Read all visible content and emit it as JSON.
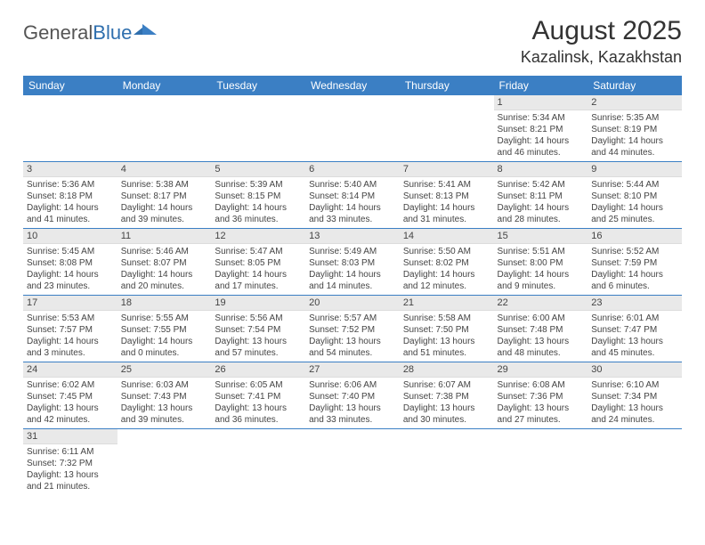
{
  "logo": {
    "text1": "General",
    "text2": "Blue"
  },
  "header": {
    "month_title": "August 2025",
    "location": "Kazalinsk, Kazakhstan"
  },
  "colors": {
    "header_bg": "#3b7fc4",
    "header_fg": "#ffffff",
    "daynum_bg": "#e9e9e9",
    "row_border": "#3b7fc4"
  },
  "weekdays": [
    "Sunday",
    "Monday",
    "Tuesday",
    "Wednesday",
    "Thursday",
    "Friday",
    "Saturday"
  ],
  "weeks": [
    [
      null,
      null,
      null,
      null,
      null,
      {
        "n": "1",
        "sr": "5:34 AM",
        "ss": "8:21 PM",
        "dl": "14 hours and 46 minutes."
      },
      {
        "n": "2",
        "sr": "5:35 AM",
        "ss": "8:19 PM",
        "dl": "14 hours and 44 minutes."
      }
    ],
    [
      {
        "n": "3",
        "sr": "5:36 AM",
        "ss": "8:18 PM",
        "dl": "14 hours and 41 minutes."
      },
      {
        "n": "4",
        "sr": "5:38 AM",
        "ss": "8:17 PM",
        "dl": "14 hours and 39 minutes."
      },
      {
        "n": "5",
        "sr": "5:39 AM",
        "ss": "8:15 PM",
        "dl": "14 hours and 36 minutes."
      },
      {
        "n": "6",
        "sr": "5:40 AM",
        "ss": "8:14 PM",
        "dl": "14 hours and 33 minutes."
      },
      {
        "n": "7",
        "sr": "5:41 AM",
        "ss": "8:13 PM",
        "dl": "14 hours and 31 minutes."
      },
      {
        "n": "8",
        "sr": "5:42 AM",
        "ss": "8:11 PM",
        "dl": "14 hours and 28 minutes."
      },
      {
        "n": "9",
        "sr": "5:44 AM",
        "ss": "8:10 PM",
        "dl": "14 hours and 25 minutes."
      }
    ],
    [
      {
        "n": "10",
        "sr": "5:45 AM",
        "ss": "8:08 PM",
        "dl": "14 hours and 23 minutes."
      },
      {
        "n": "11",
        "sr": "5:46 AM",
        "ss": "8:07 PM",
        "dl": "14 hours and 20 minutes."
      },
      {
        "n": "12",
        "sr": "5:47 AM",
        "ss": "8:05 PM",
        "dl": "14 hours and 17 minutes."
      },
      {
        "n": "13",
        "sr": "5:49 AM",
        "ss": "8:03 PM",
        "dl": "14 hours and 14 minutes."
      },
      {
        "n": "14",
        "sr": "5:50 AM",
        "ss": "8:02 PM",
        "dl": "14 hours and 12 minutes."
      },
      {
        "n": "15",
        "sr": "5:51 AM",
        "ss": "8:00 PM",
        "dl": "14 hours and 9 minutes."
      },
      {
        "n": "16",
        "sr": "5:52 AM",
        "ss": "7:59 PM",
        "dl": "14 hours and 6 minutes."
      }
    ],
    [
      {
        "n": "17",
        "sr": "5:53 AM",
        "ss": "7:57 PM",
        "dl": "14 hours and 3 minutes."
      },
      {
        "n": "18",
        "sr": "5:55 AM",
        "ss": "7:55 PM",
        "dl": "14 hours and 0 minutes."
      },
      {
        "n": "19",
        "sr": "5:56 AM",
        "ss": "7:54 PM",
        "dl": "13 hours and 57 minutes."
      },
      {
        "n": "20",
        "sr": "5:57 AM",
        "ss": "7:52 PM",
        "dl": "13 hours and 54 minutes."
      },
      {
        "n": "21",
        "sr": "5:58 AM",
        "ss": "7:50 PM",
        "dl": "13 hours and 51 minutes."
      },
      {
        "n": "22",
        "sr": "6:00 AM",
        "ss": "7:48 PM",
        "dl": "13 hours and 48 minutes."
      },
      {
        "n": "23",
        "sr": "6:01 AM",
        "ss": "7:47 PM",
        "dl": "13 hours and 45 minutes."
      }
    ],
    [
      {
        "n": "24",
        "sr": "6:02 AM",
        "ss": "7:45 PM",
        "dl": "13 hours and 42 minutes."
      },
      {
        "n": "25",
        "sr": "6:03 AM",
        "ss": "7:43 PM",
        "dl": "13 hours and 39 minutes."
      },
      {
        "n": "26",
        "sr": "6:05 AM",
        "ss": "7:41 PM",
        "dl": "13 hours and 36 minutes."
      },
      {
        "n": "27",
        "sr": "6:06 AM",
        "ss": "7:40 PM",
        "dl": "13 hours and 33 minutes."
      },
      {
        "n": "28",
        "sr": "6:07 AM",
        "ss": "7:38 PM",
        "dl": "13 hours and 30 minutes."
      },
      {
        "n": "29",
        "sr": "6:08 AM",
        "ss": "7:36 PM",
        "dl": "13 hours and 27 minutes."
      },
      {
        "n": "30",
        "sr": "6:10 AM",
        "ss": "7:34 PM",
        "dl": "13 hours and 24 minutes."
      }
    ],
    [
      {
        "n": "31",
        "sr": "6:11 AM",
        "ss": "7:32 PM",
        "dl": "13 hours and 21 minutes."
      },
      null,
      null,
      null,
      null,
      null,
      null
    ]
  ],
  "labels": {
    "sunrise": "Sunrise:",
    "sunset": "Sunset:",
    "daylight": "Daylight:"
  }
}
